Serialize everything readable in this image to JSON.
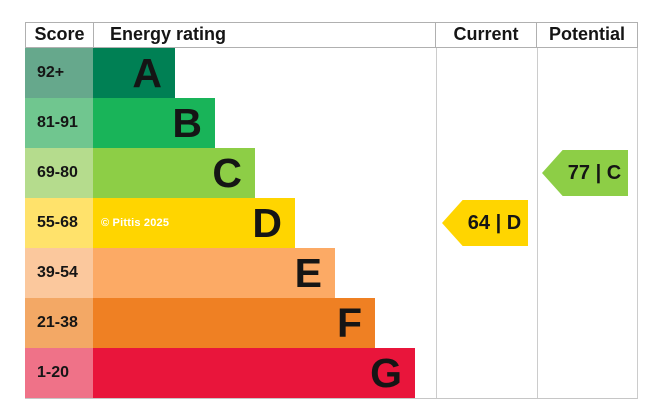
{
  "header": {
    "score": "Score",
    "energy_rating": "Energy rating",
    "current": "Current",
    "potential": "Potential"
  },
  "watermark": "© Pittis 2025",
  "bands": [
    {
      "letter": "A",
      "range": "92+",
      "bar_color": "#008054",
      "score_color": "#66a88c"
    },
    {
      "letter": "B",
      "range": "81-91",
      "bar_color": "#19b459",
      "score_color": "#70c68f"
    },
    {
      "letter": "C",
      "range": "69-80",
      "bar_color": "#8dce46",
      "score_color": "#b5dc8d"
    },
    {
      "letter": "D",
      "range": "55-68",
      "bar_color": "#ffd500",
      "score_color": "#ffe26b"
    },
    {
      "letter": "E",
      "range": "39-54",
      "bar_color": "#fcaa65",
      "score_color": "#fbc89d"
    },
    {
      "letter": "F",
      "range": "21-38",
      "bar_color": "#ef8023",
      "score_color": "#f3a865"
    },
    {
      "letter": "G",
      "range": "1-20",
      "bar_color": "#e9153b",
      "score_color": "#ef7288"
    }
  ],
  "current": {
    "label": "64 | D",
    "value": 64,
    "band": "D",
    "color": "#ffd500"
  },
  "potential": {
    "label": "77 | C",
    "value": 77,
    "band": "C",
    "color": "#8dce46"
  },
  "chart_data": {
    "type": "bar",
    "title": "Energy rating",
    "categories": [
      "A",
      "B",
      "C",
      "D",
      "E",
      "F",
      "G"
    ],
    "score_ranges": [
      "92+",
      "81-91",
      "69-80",
      "55-68",
      "39-54",
      "21-38",
      "1-20"
    ],
    "band_colors": [
      "#008054",
      "#19b459",
      "#8dce46",
      "#ffd500",
      "#fcaa65",
      "#ef8023",
      "#e9153b"
    ],
    "current_rating": {
      "score": 64,
      "band": "D"
    },
    "potential_rating": {
      "score": 77,
      "band": "C"
    },
    "legend_position": "none",
    "grid": false
  }
}
